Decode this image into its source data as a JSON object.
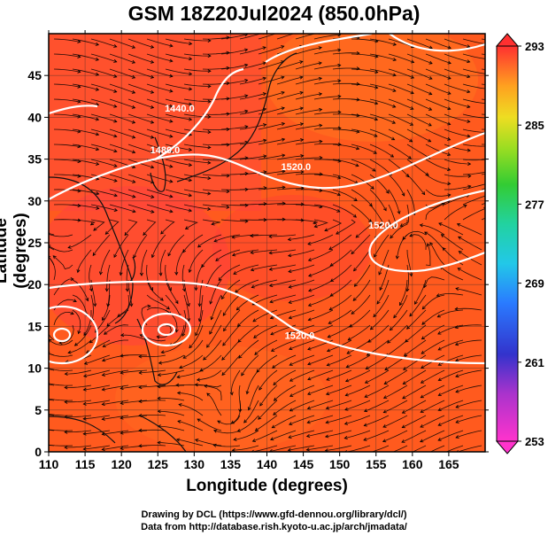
{
  "title": "GSM 18Z20Jul2024 (850.0hPa)",
  "x_axis": {
    "label": "Longitude (degrees)",
    "min": 110,
    "max": 170,
    "ticks": [
      "110",
      "115",
      "120",
      "125",
      "130",
      "135",
      "140",
      "145",
      "150",
      "155",
      "160",
      "165"
    ]
  },
  "y_axis": {
    "label": "Latitude  (degrees)",
    "min": 0,
    "max": 50,
    "ticks": [
      "0",
      "5",
      "10",
      "15",
      "20",
      "25",
      "30",
      "35",
      "40",
      "45"
    ]
  },
  "colorbar": {
    "min": 253,
    "max": 293,
    "labels": [
      "293",
      "285",
      "277",
      "269",
      "261",
      "253"
    ]
  },
  "contours": [
    {
      "label": "1520.0",
      "lon": 144,
      "lat": 34
    },
    {
      "label": "1520.0",
      "lon": 144.5,
      "lat": 13.8
    },
    {
      "label": "1520.0",
      "lon": 156,
      "lat": 27
    },
    {
      "label": "1480.0",
      "lon": 126,
      "lat": 36
    },
    {
      "label": "1440.0",
      "lon": 128,
      "lat": 41
    }
  ],
  "credits": {
    "line1": "Drawing by DCL (https://www.gfd-dennou.org/library/dcl/)",
    "line2": "Data from http://database.rish.kyoto-u.ac.jp/arch/jmadata/"
  },
  "colors": {
    "warm": "#ff5a1e",
    "hot": "#ff3a3a",
    "cool": "#9be21a",
    "colorbar_top": "#ff3030",
    "colorbar_bottom": "#ff33cc"
  }
}
